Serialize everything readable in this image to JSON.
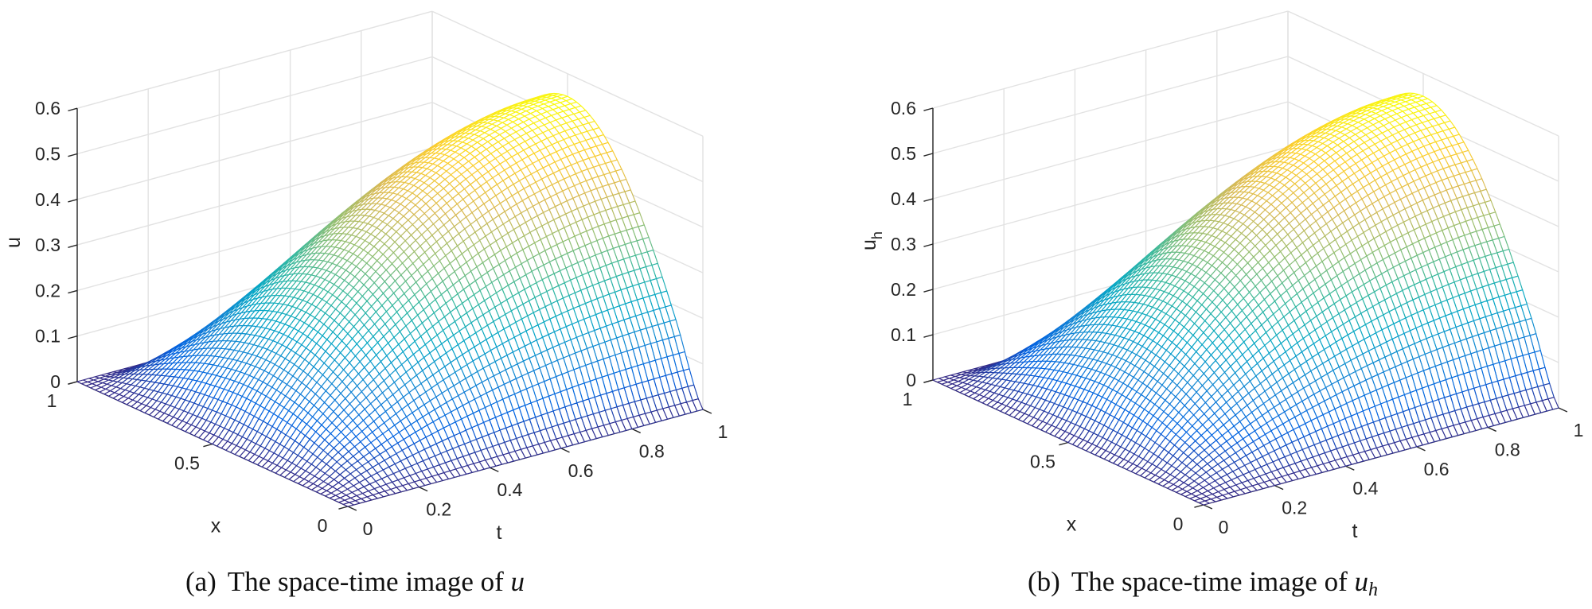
{
  "colors": {
    "grid": "#e2e2e2",
    "axis": "#262626",
    "face": "#ffffff",
    "colormap_parula": [
      "#352a87",
      "#0363e1",
      "#1485d4",
      "#06a7c6",
      "#38b99e",
      "#92bf73",
      "#d9ba56",
      "#fcce2e",
      "#f9fb0e"
    ]
  },
  "captions": [
    {
      "tag": "(a)",
      "text": "The space-time image of",
      "math": "u",
      "sub": ""
    },
    {
      "tag": "(b)",
      "text": "The space-time image of",
      "math": "u",
      "sub": "h"
    }
  ],
  "chart_data": [
    {
      "type": "surface-mesh",
      "xlabel": "x",
      "ylabel": "t",
      "zlabel": {
        "base": "u",
        "sub": ""
      },
      "xlim": [
        0,
        1
      ],
      "ylim": [
        0,
        1
      ],
      "zlim": [
        0,
        0.6
      ],
      "xticks": [
        "0",
        "0.5",
        "1"
      ],
      "yticks": [
        "0",
        "0.2",
        "0.4",
        "0.6",
        "0.8",
        "1"
      ],
      "zticks": [
        "0",
        "0.1",
        "0.2",
        "0.3",
        "0.4",
        "0.5",
        "0.6"
      ],
      "grid": true,
      "colormap": "parula",
      "x": [
        0,
        0.1,
        0.2,
        0.3,
        0.4,
        0.5,
        0.6,
        0.7,
        0.8,
        0.9,
        1
      ],
      "t": [
        0,
        0.1,
        0.2,
        0.3,
        0.4,
        0.5,
        0.6,
        0.7,
        0.8,
        0.9,
        1
      ],
      "z": [
        [
          0,
          0,
          0,
          0,
          0,
          0,
          0,
          0,
          0,
          0,
          0
        ],
        [
          0,
          0.032,
          0.061,
          0.087,
          0.109,
          0.128,
          0.143,
          0.155,
          0.163,
          0.168,
          0.17
        ],
        [
          0,
          0.061,
          0.116,
          0.165,
          0.207,
          0.242,
          0.271,
          0.294,
          0.31,
          0.32,
          0.323
        ],
        [
          0,
          0.085,
          0.16,
          0.227,
          0.285,
          0.334,
          0.374,
          0.405,
          0.427,
          0.441,
          0.445
        ],
        [
          0,
          0.099,
          0.188,
          0.267,
          0.335,
          0.392,
          0.439,
          0.476,
          0.502,
          0.518,
          0.523
        ],
        [
          0,
          0.105,
          0.198,
          0.281,
          0.352,
          0.413,
          0.462,
          0.501,
          0.528,
          0.545,
          0.55
        ],
        [
          0,
          0.099,
          0.188,
          0.267,
          0.335,
          0.392,
          0.439,
          0.476,
          0.502,
          0.518,
          0.523
        ],
        [
          0,
          0.085,
          0.16,
          0.227,
          0.285,
          0.334,
          0.374,
          0.405,
          0.427,
          0.441,
          0.445
        ],
        [
          0,
          0.061,
          0.116,
          0.165,
          0.207,
          0.242,
          0.271,
          0.294,
          0.31,
          0.32,
          0.323
        ],
        [
          0,
          0.032,
          0.061,
          0.087,
          0.109,
          0.128,
          0.143,
          0.155,
          0.163,
          0.168,
          0.17
        ],
        [
          0,
          0,
          0,
          0,
          0,
          0,
          0,
          0,
          0,
          0,
          0
        ]
      ]
    },
    {
      "type": "surface-mesh",
      "xlabel": "x",
      "ylabel": "t",
      "zlabel": {
        "base": "u",
        "sub": "h"
      },
      "xlim": [
        0,
        1
      ],
      "ylim": [
        0,
        1
      ],
      "zlim": [
        0,
        0.6
      ],
      "xticks": [
        "0",
        "0.5",
        "1"
      ],
      "yticks": [
        "0",
        "0.2",
        "0.4",
        "0.6",
        "0.8",
        "1"
      ],
      "zticks": [
        "0",
        "0.1",
        "0.2",
        "0.3",
        "0.4",
        "0.5",
        "0.6"
      ],
      "grid": true,
      "colormap": "parula",
      "x": [
        0,
        0.1,
        0.2,
        0.3,
        0.4,
        0.5,
        0.6,
        0.7,
        0.8,
        0.9,
        1
      ],
      "t": [
        0,
        0.1,
        0.2,
        0.3,
        0.4,
        0.5,
        0.6,
        0.7,
        0.8,
        0.9,
        1
      ],
      "z": [
        [
          0,
          0,
          0,
          0,
          0,
          0,
          0,
          0,
          0,
          0,
          0
        ],
        [
          0,
          0.032,
          0.061,
          0.087,
          0.109,
          0.128,
          0.143,
          0.155,
          0.163,
          0.168,
          0.17
        ],
        [
          0,
          0.061,
          0.116,
          0.165,
          0.207,
          0.242,
          0.271,
          0.294,
          0.31,
          0.32,
          0.323
        ],
        [
          0,
          0.085,
          0.16,
          0.227,
          0.285,
          0.334,
          0.374,
          0.405,
          0.427,
          0.441,
          0.445
        ],
        [
          0,
          0.099,
          0.188,
          0.267,
          0.335,
          0.392,
          0.439,
          0.476,
          0.502,
          0.518,
          0.523
        ],
        [
          0,
          0.105,
          0.198,
          0.281,
          0.352,
          0.413,
          0.462,
          0.501,
          0.528,
          0.545,
          0.55
        ],
        [
          0,
          0.099,
          0.188,
          0.267,
          0.335,
          0.392,
          0.439,
          0.476,
          0.502,
          0.518,
          0.523
        ],
        [
          0,
          0.085,
          0.16,
          0.227,
          0.285,
          0.334,
          0.374,
          0.405,
          0.427,
          0.441,
          0.445
        ],
        [
          0,
          0.061,
          0.116,
          0.165,
          0.207,
          0.242,
          0.271,
          0.294,
          0.31,
          0.32,
          0.323
        ],
        [
          0,
          0.032,
          0.061,
          0.087,
          0.109,
          0.128,
          0.143,
          0.155,
          0.163,
          0.168,
          0.17
        ],
        [
          0,
          0,
          0,
          0,
          0,
          0,
          0,
          0,
          0,
          0,
          0
        ]
      ]
    }
  ]
}
